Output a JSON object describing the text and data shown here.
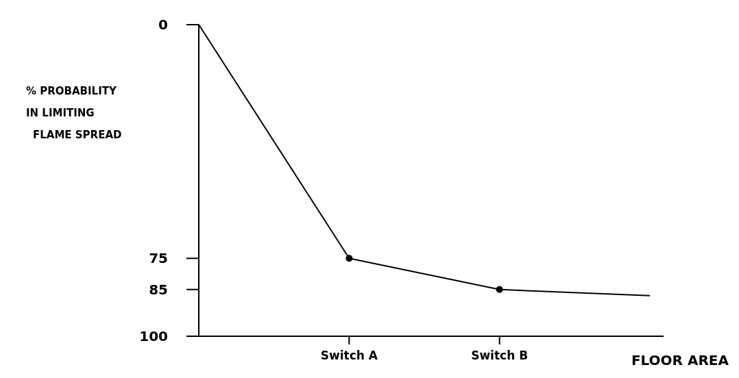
{
  "chart_data": {
    "type": "line",
    "xlabel": "FLOOR AREA",
    "ylabel": "% PROBABILITY IN LIMITING FLAME SPREAD",
    "categories": [
      null,
      "Switch A",
      "Switch B",
      null
    ],
    "series": [
      {
        "color": "#000000",
        "values": [
          0,
          75,
          85,
          87
        ]
      }
    ],
    "ylim": [
      100,
      0
    ],
    "yticks": [
      0,
      75,
      85,
      100
    ],
    "marker": "circle",
    "line_style": "solid",
    "grid": false
  }
}
